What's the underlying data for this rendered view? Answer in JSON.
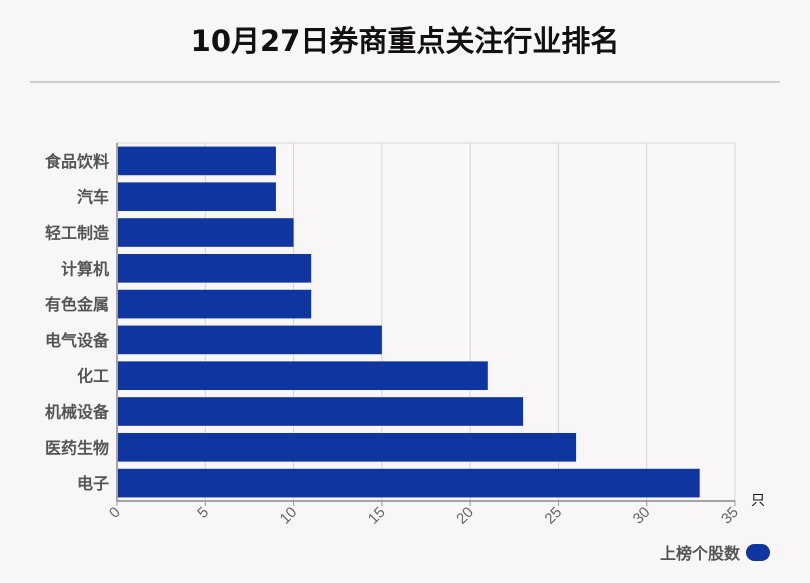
{
  "title": "10月27日券商重点关注行业排名",
  "chart_data": {
    "type": "bar",
    "orientation": "horizontal",
    "categories": [
      "食品饮料",
      "汽车",
      "轻工制造",
      "计算机",
      "有色金属",
      "电气设备",
      "化工",
      "机械设备",
      "医药生物",
      "电子"
    ],
    "series": [
      {
        "name": "上榜个股数",
        "values": [
          9,
          9,
          10,
          11,
          11,
          15,
          21,
          23,
          26,
          33
        ]
      }
    ],
    "xlim": [
      0,
      35
    ],
    "xticks": [
      0,
      5,
      10,
      15,
      20,
      25,
      30,
      35
    ],
    "xunit": "只",
    "grid": true,
    "legend_position": "bottom-right",
    "bar_color": "#0e35a0"
  }
}
